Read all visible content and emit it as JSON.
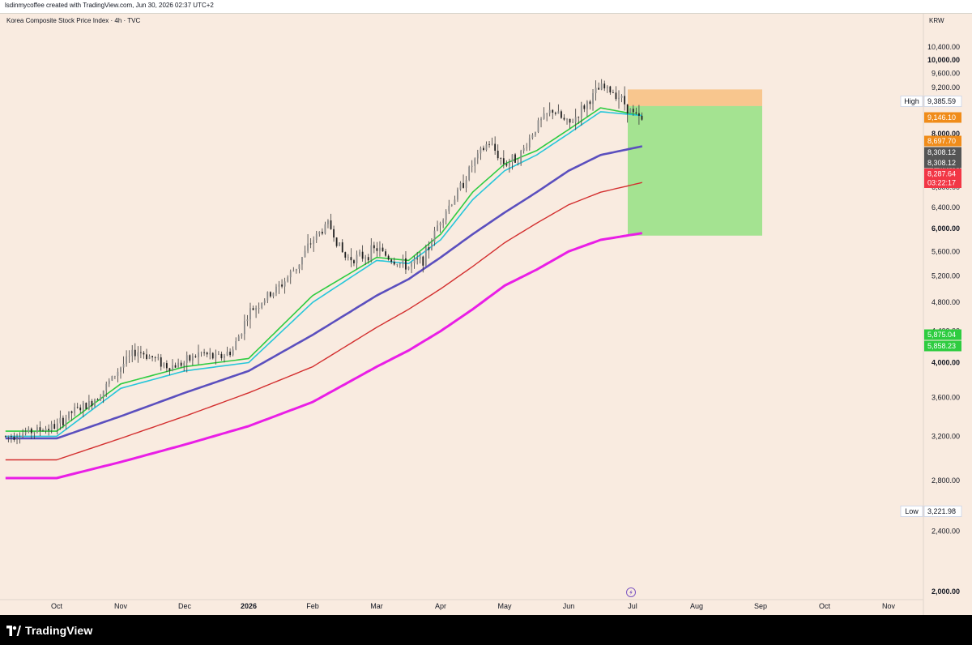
{
  "header": {
    "attribution": "lsdinmycoffee created with TradingView.com, Jun 30, 2026 02:37 UTC+2"
  },
  "footer": {
    "brand": "TradingView"
  },
  "chart_data": {
    "type": "candlestick",
    "title": "Korea Composite Stock Price Index · 4h · TVC",
    "currency": "KRW",
    "y_scale": "log",
    "ylim": [
      2000,
      10800
    ],
    "x_labels": [
      "Oct",
      "Nov",
      "Dec",
      "2026",
      "Feb",
      "Mar",
      "Apr",
      "May",
      "Jun",
      "Jul",
      "Aug",
      "Sep",
      "Oct",
      "Nov"
    ],
    "y_ticks": [
      "10,400.00",
      "10,000.00",
      "9,600.00",
      "9,200.00",
      "8,800.00",
      "8,000.00",
      "7,600.00",
      "7,200.00",
      "6,800.00",
      "6,400.00",
      "6,000.00",
      "5,600.00",
      "5,200.00",
      "4,800.00",
      "4,400.00",
      "4,000.00",
      "3,600.00",
      "3,200.00",
      "2,800.00",
      "2,400.00",
      "2,000.00"
    ],
    "y_tick_values": [
      10400,
      10000,
      9600,
      9200,
      8800,
      8000,
      7600,
      7200,
      6800,
      6400,
      6000,
      5600,
      5200,
      4800,
      4400,
      4000,
      3600,
      3200,
      2800,
      2400,
      2000
    ],
    "price_tags": [
      {
        "label": "High",
        "value": "9,385.59",
        "bg": "#ffffff",
        "fg": "#131722"
      },
      {
        "label": "",
        "value": "9,146.10",
        "bg": "#f08c1a",
        "fg": "#ffffff"
      },
      {
        "label": "",
        "value": "8,697.70",
        "bg": "#f08c1a",
        "fg": "#ffffff"
      },
      {
        "label": "",
        "value": "8,308.12",
        "bg": "#555555",
        "fg": "#ffffff"
      },
      {
        "label": "",
        "value": "8,308.12",
        "bg": "#555555",
        "fg": "#ffffff"
      },
      {
        "label": "",
        "value": "8,287.64",
        "sub": "03:22:17",
        "bg": "#f23645",
        "fg": "#ffffff"
      },
      {
        "label": "",
        "value": "5,875.04",
        "bg": "#2ecc40",
        "fg": "#ffffff"
      },
      {
        "label": "",
        "value": "5,858.23",
        "bg": "#2ecc40",
        "fg": "#ffffff"
      },
      {
        "label": "Low",
        "value": "3,221.98",
        "bg": "#ffffff",
        "fg": "#131722"
      }
    ],
    "position_tools": [
      {
        "name": "position-1",
        "entry": 8697.7,
        "target": 5875.04,
        "stop": 9146.1,
        "x_start": "Jul",
        "x_end": "Sep"
      },
      {
        "name": "position-2",
        "entry": 8308.12,
        "target": 5858.23,
        "stop": 9146.1,
        "x_start": "Jul",
        "x_end": "Oct"
      }
    ],
    "series": [
      {
        "name": "price",
        "kind": "candles",
        "color": "#131722",
        "x_months": [
          0,
          0.25,
          0.5,
          0.75,
          1,
          1.25,
          1.5,
          1.75,
          2,
          2.25,
          2.5,
          2.75,
          3,
          3.25,
          3.5,
          3.75,
          4,
          4.25,
          4.5,
          4.75,
          5,
          5.25,
          5.5,
          5.75,
          6,
          6.25,
          6.5,
          6.75,
          7,
          7.25,
          7.5,
          7.75,
          8,
          8.25,
          8.5,
          8.75,
          9,
          9.15
        ],
        "values": [
          3300,
          3450,
          3520,
          3700,
          3950,
          4150,
          4060,
          3950,
          4000,
          4120,
          4050,
          4150,
          4650,
          4850,
          5050,
          5350,
          5800,
          6100,
          5500,
          5500,
          5650,
          5450,
          5350,
          5500,
          6200,
          6650,
          7300,
          7800,
          7300,
          7500,
          8200,
          8600,
          8200,
          8700,
          9200,
          9050,
          8500,
          8300
        ]
      },
      {
        "name": "ema-fast",
        "kind": "line",
        "color": "#2ecc40",
        "x_months": [
          0,
          1,
          2,
          3,
          4,
          5,
          5.5,
          6,
          6.5,
          7,
          7.5,
          8,
          8.5,
          9.15
        ],
        "values": [
          3250,
          3750,
          3950,
          4050,
          4900,
          5500,
          5450,
          5900,
          6700,
          7300,
          7600,
          8100,
          8650,
          8450
        ]
      },
      {
        "name": "ema-med",
        "kind": "line",
        "color": "#26c6da",
        "x_months": [
          0,
          1,
          2,
          3,
          4,
          5,
          5.5,
          6,
          6.5,
          7,
          7.5,
          8,
          8.5,
          9.15
        ],
        "values": [
          3200,
          3700,
          3900,
          4000,
          4800,
          5450,
          5400,
          5800,
          6550,
          7150,
          7500,
          8000,
          8550,
          8450
        ]
      },
      {
        "name": "ma-mid",
        "kind": "line",
        "color": "#5b4fbe",
        "x_months": [
          0,
          1,
          2,
          3,
          4,
          5,
          5.5,
          6,
          6.5,
          7,
          7.5,
          8,
          8.5,
          9.15
        ],
        "values": [
          3180,
          3400,
          3650,
          3900,
          4350,
          4900,
          5150,
          5500,
          5900,
          6300,
          6700,
          7150,
          7500,
          7700
        ]
      },
      {
        "name": "ma-slow",
        "kind": "line",
        "color": "#d32f2f",
        "x_months": [
          0,
          1,
          2,
          3,
          4,
          5,
          5.5,
          6,
          6.5,
          7,
          7.5,
          8,
          8.5,
          9.15
        ],
        "values": [
          2980,
          3180,
          3400,
          3650,
          3950,
          4450,
          4700,
          5000,
          5350,
          5750,
          6100,
          6450,
          6700,
          6900
        ]
      },
      {
        "name": "ma-long",
        "kind": "line",
        "color": "#e91ee6",
        "x_months": [
          0,
          1,
          2,
          3,
          4,
          5,
          5.5,
          6,
          6.5,
          7,
          7.5,
          8,
          8.5,
          9.15
        ],
        "values": [
          2820,
          2960,
          3120,
          3300,
          3550,
          3950,
          4150,
          4400,
          4700,
          5050,
          5300,
          5600,
          5800,
          5920
        ]
      }
    ]
  }
}
